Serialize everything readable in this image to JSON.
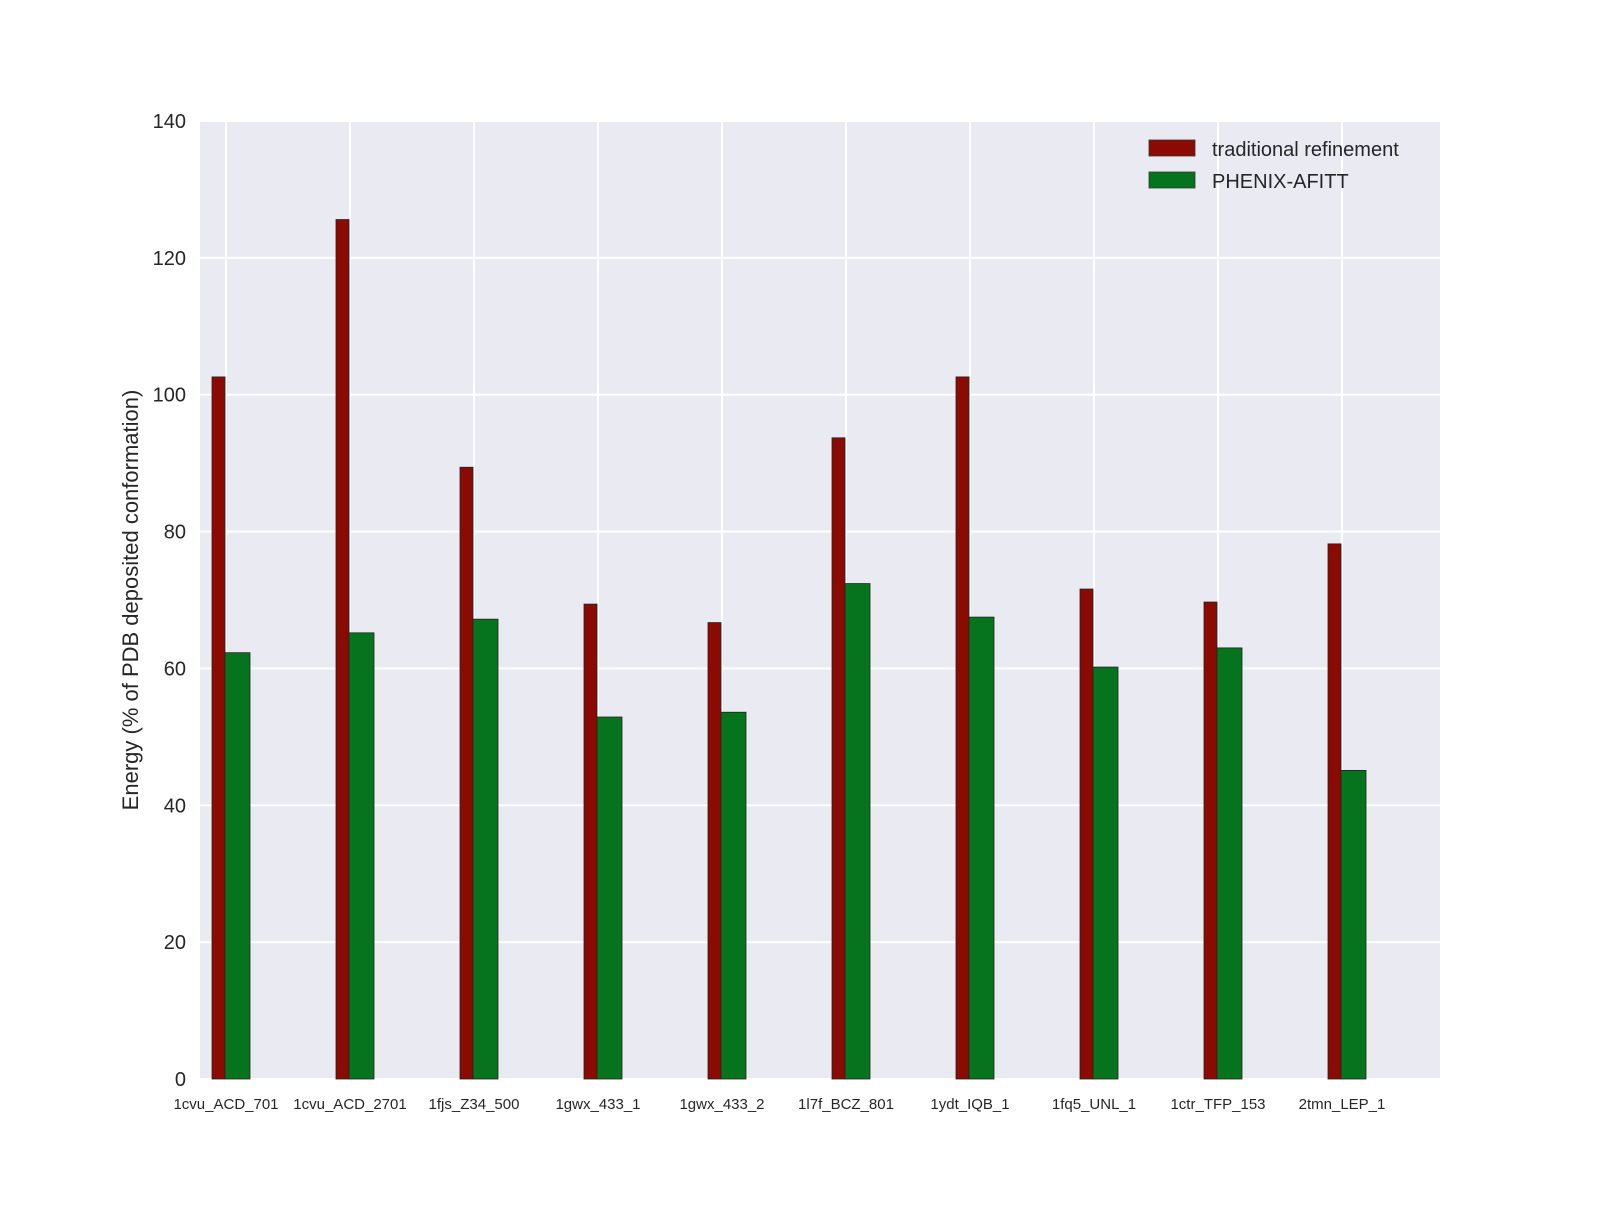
{
  "chart_data": {
    "type": "bar",
    "title": "",
    "xlabel": "",
    "ylabel": "Energy (% of PDB deposited conformation)",
    "ylim": [
      0,
      140
    ],
    "yticks": [
      0,
      20,
      40,
      60,
      80,
      100,
      120,
      140
    ],
    "grid": true,
    "legend_position": "top-right",
    "categories": [
      "1cvu_ACD_701",
      "1cvu_ACD_2701",
      "1fjs_Z34_500",
      "1gwx_433_1",
      "1gwx_433_2",
      "1l7f_BCZ_801",
      "1ydt_IQB_1",
      "1fq5_UNL_1",
      "1ctr_TFP_153",
      "2tmn_LEP_1"
    ],
    "series": [
      {
        "name": "traditional refinement",
        "color": "#8b0a02",
        "values": [
          102.6,
          125.6,
          89.4,
          69.4,
          66.7,
          93.7,
          102.6,
          71.6,
          69.7,
          78.2
        ]
      },
      {
        "name": "PHENIX-AFITT",
        "color": "#05741c",
        "values": [
          62.3,
          65.2,
          67.2,
          52.9,
          53.6,
          72.4,
          67.5,
          60.2,
          63.0,
          45.1
        ]
      }
    ]
  }
}
